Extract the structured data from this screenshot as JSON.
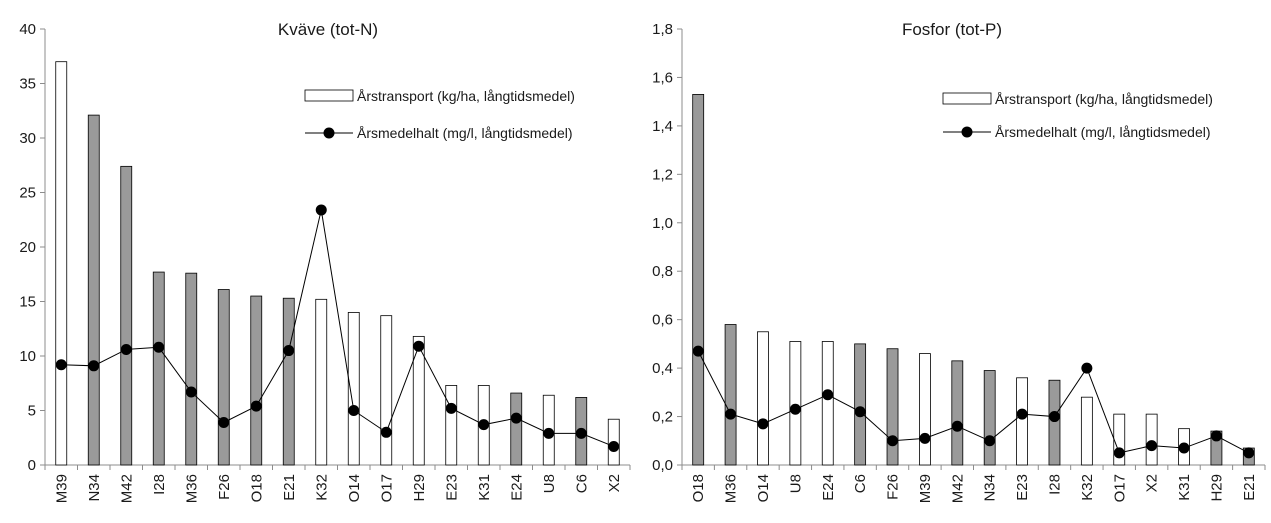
{
  "colors": {
    "filled": "#9a9a9a",
    "open": "#ffffff",
    "outline": "#000000",
    "line": "#000000"
  },
  "chart_data": [
    {
      "type": "bar",
      "title": "Kväve (tot-N)",
      "categories": [
        "M39",
        "N34",
        "M42",
        "I28",
        "M36",
        "F26",
        "O18",
        "E21",
        "K32",
        "O14",
        "O17",
        "H29",
        "E23",
        "K31",
        "E24",
        "U8",
        "C6",
        "X2"
      ],
      "y_tick_labels": [
        "0",
        "5",
        "10",
        "15",
        "20",
        "25",
        "30",
        "35",
        "40"
      ],
      "ylim": [
        0,
        40
      ],
      "series": [
        {
          "name": "Årstransport (kg/ha, långtidsmedel)",
          "type": "bar",
          "values": [
            37.0,
            32.1,
            27.4,
            17.7,
            17.6,
            16.1,
            15.5,
            15.3,
            15.2,
            14.0,
            13.7,
            11.8,
            7.3,
            7.3,
            6.6,
            6.4,
            6.2,
            4.2
          ],
          "filled": [
            false,
            true,
            true,
            true,
            true,
            true,
            true,
            true,
            false,
            false,
            false,
            false,
            false,
            false,
            true,
            false,
            true,
            false
          ]
        },
        {
          "name": "Årsmedelhalt (mg/l, långtidsmedel)",
          "type": "line",
          "values": [
            9.2,
            9.1,
            10.6,
            10.8,
            6.7,
            3.9,
            5.4,
            10.5,
            23.4,
            5.0,
            3.0,
            10.9,
            5.2,
            3.7,
            4.3,
            2.9,
            2.9,
            1.7
          ]
        }
      ],
      "legend_position": "top-right"
    },
    {
      "type": "bar",
      "title": "Fosfor (tot-P)",
      "categories": [
        "O18",
        "M36",
        "O14",
        "U8",
        "E24",
        "C6",
        "F26",
        "M39",
        "M42",
        "N34",
        "E23",
        "I28",
        "K32",
        "O17",
        "X2",
        "K31",
        "H29",
        "E21"
      ],
      "y_tick_labels": [
        "0,0",
        "0,2",
        "0,4",
        "0,6",
        "0,8",
        "1,0",
        "1,2",
        "1,4",
        "1,6",
        "1,8"
      ],
      "ylim": [
        0,
        1.8
      ],
      "series": [
        {
          "name": "Årstransport (kg/ha, långtidsmedel)",
          "type": "bar",
          "values": [
            1.53,
            0.58,
            0.55,
            0.51,
            0.51,
            0.5,
            0.48,
            0.46,
            0.43,
            0.39,
            0.36,
            0.35,
            0.28,
            0.21,
            0.21,
            0.15,
            0.14,
            0.07
          ],
          "filled": [
            true,
            true,
            false,
            false,
            false,
            true,
            true,
            false,
            true,
            true,
            false,
            true,
            false,
            false,
            false,
            false,
            true,
            true
          ]
        },
        {
          "name": "Årsmedelhalt (mg/l, långtidsmedel)",
          "type": "line",
          "values": [
            0.47,
            0.21,
            0.17,
            0.23,
            0.29,
            0.22,
            0.1,
            0.11,
            0.16,
            0.1,
            0.21,
            0.2,
            0.4,
            0.05,
            0.08,
            0.07,
            0.12,
            0.05
          ]
        }
      ],
      "legend_position": "top-right"
    }
  ]
}
